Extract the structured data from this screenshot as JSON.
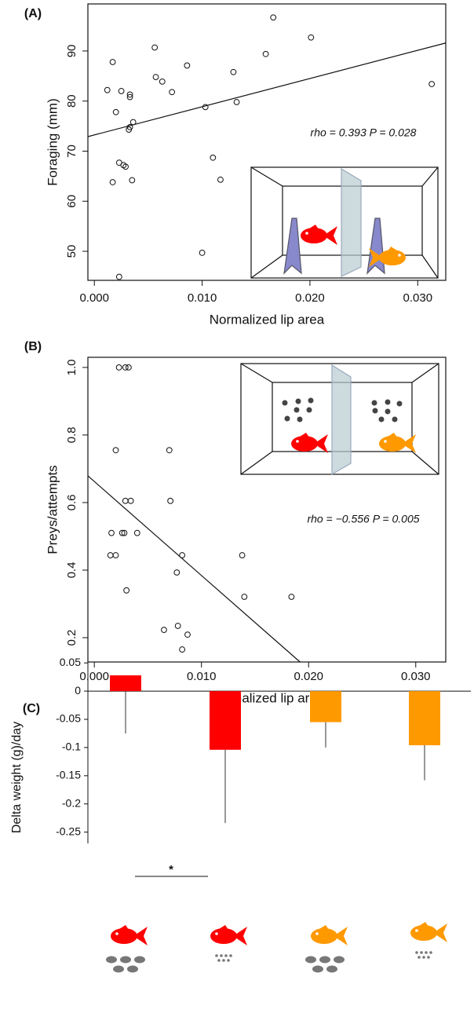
{
  "chart_data": [
    {
      "type": "scatter",
      "panel": "(A)",
      "xlabel": "Normalized lip area",
      "ylabel": "Foraging (mm)",
      "annotation": "rho = 0.393 P = 0.028",
      "x": [
        0.0012,
        0.0017,
        0.002,
        0.0025,
        0.0033,
        0.0033,
        0.0036,
        0.0033,
        0.0032,
        0.0023,
        0.0027,
        0.0029,
        0.0017,
        0.0035,
        0.0023,
        0.0056,
        0.0057,
        0.0063,
        0.0072,
        0.0086,
        0.0103,
        0.011,
        0.0117,
        0.01,
        0.0129,
        0.0132,
        0.0166,
        0.0159,
        0.0201,
        0.0313
      ],
      "values": [
        82.2,
        87.8,
        77.8,
        82,
        81.3,
        80.8,
        75.8,
        74.8,
        74.3,
        67.7,
        67.2,
        66.9,
        63.8,
        64.2,
        44.9,
        90.7,
        84.8,
        83.9,
        81.8,
        87.1,
        78.8,
        68.7,
        64.3,
        49.7,
        85.8,
        79.8,
        96.7,
        89.4,
        92.7,
        83.4
      ],
      "fit": {
        "x": [
          -0.0006,
          0.0326
        ],
        "values": [
          72.9,
          91.6
        ]
      },
      "xlim": [
        -0.0006,
        0.0326
      ],
      "ylim": [
        44.2,
        99.4
      ],
      "xticks": [
        {
          "value": 0,
          "label": "0.000"
        },
        {
          "value": 0.01,
          "label": "0.010"
        },
        {
          "value": 0.02,
          "label": "0.020"
        },
        {
          "value": 0.03,
          "label": "0.030"
        }
      ],
      "yticks": [
        50,
        60,
        70,
        80,
        90
      ]
    },
    {
      "type": "scatter",
      "panel": "(B)",
      "xlabel": "Normalized lip area",
      "ylabel": "Preys/attempts",
      "annotation": "rho = −0.556 P = 0.005",
      "x": [
        0.0023,
        0.0029,
        0.0032,
        0.002,
        0.007,
        0.0029,
        0.0034,
        0.0071,
        0.0016,
        0.0026,
        0.0028,
        0.004,
        0.0015,
        0.002,
        0.0082,
        0.0138,
        0.003,
        0.0077,
        0.014,
        0.0184,
        0.0065,
        0.0078,
        0.0087,
        0.0082
      ],
      "values": [
        1.0,
        1.0,
        1.0,
        0.755,
        0.755,
        0.605,
        0.605,
        0.605,
        0.51,
        0.51,
        0.51,
        0.51,
        0.444,
        0.444,
        0.444,
        0.444,
        0.34,
        0.393,
        0.321,
        0.321,
        0.223,
        0.235,
        0.209,
        0.165
      ],
      "fit": {
        "x": [
          -0.0006,
          0.0192
        ],
        "values": [
          0.679,
          0.128
        ]
      },
      "xlim": [
        -0.0006,
        0.0328
      ],
      "ylim": [
        0.128,
        1.03
      ],
      "xticks": [
        {
          "value": 0,
          "label": "0.000"
        },
        {
          "value": 0.01,
          "label": "0.010"
        },
        {
          "value": 0.02,
          "label": "0.020"
        },
        {
          "value": 0.03,
          "label": "0.030"
        }
      ],
      "yticks": [
        0.2,
        0.4,
        0.6,
        {
          "value": 0.8,
          "label": "0.8"
        },
        {
          "value": 1.0,
          "label": "1.0"
        }
      ]
    },
    {
      "type": "bar",
      "panel": "(C)",
      "ylabel": "Delta weight (g)/day",
      "annotation": "*",
      "categories": [
        null,
        null,
        null,
        null
      ],
      "values": [
        0.028,
        -0.104,
        -0.055,
        -0.096
      ],
      "errors": [
        0.103,
        0.13,
        0.045,
        0.062
      ],
      "colors": [
        "#ff0000",
        "#ff0000",
        "#ff9900",
        "#ff9900"
      ],
      "ylim": [
        -0.27,
        0.06
      ],
      "yticks": [
        0.05,
        0,
        -0.05,
        -0.1,
        -0.15,
        -0.2,
        -0.25
      ]
    }
  ]
}
